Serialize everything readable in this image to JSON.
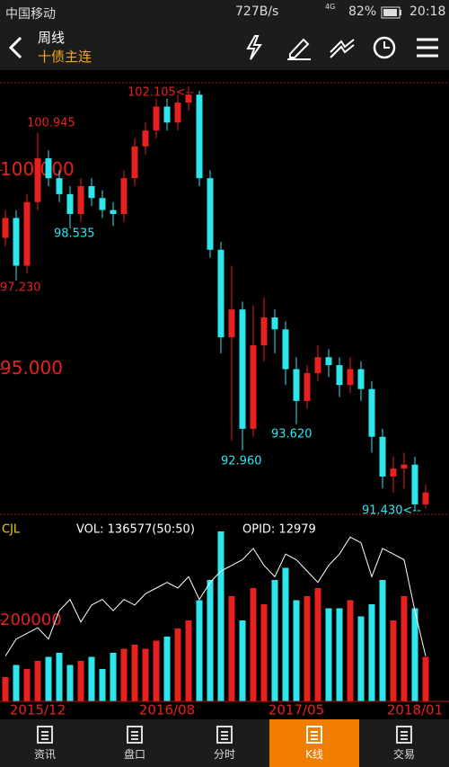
{
  "status_bar": {
    "carrier": "中国移动",
    "speed": "727B/s",
    "network": "4G",
    "battery": "82%",
    "time": "20:18"
  },
  "header": {
    "period": "周线",
    "instrument": "十债主连"
  },
  "tabs": [
    "资讯",
    "盘口",
    "分时",
    "K线",
    "交易"
  ],
  "active_tab": 3,
  "chart_data": [
    {
      "type": "candlestick",
      "open": [
        98.3,
        98.8,
        97.6,
        99.2,
        100.3,
        99.8,
        99.4,
        98.9,
        99.6,
        99.3,
        99.0,
        98.9,
        99.8,
        100.6,
        101.0,
        101.6,
        101.2,
        101.7,
        101.9,
        99.8,
        98.0,
        95.8,
        96.5,
        93.5,
        95.6,
        96.3,
        96.0,
        95.0,
        94.2,
        94.9,
        95.3,
        95.1,
        94.6,
        95.0,
        94.5,
        93.3,
        92.3,
        92.5,
        92.6,
        91.6
      ],
      "high": [
        99.0,
        99.0,
        99.4,
        100.945,
        100.5,
        100.0,
        99.6,
        99.8,
        99.8,
        99.5,
        99.2,
        100.0,
        100.8,
        101.2,
        101.8,
        101.8,
        101.9,
        102.105,
        102.0,
        100.0,
        98.2,
        97.6,
        96.7,
        96.6,
        96.8,
        96.5,
        96.2,
        95.3,
        95.1,
        95.6,
        95.5,
        95.3,
        95.3,
        95.2,
        94.7,
        93.5,
        92.8,
        92.9,
        92.8,
        92.1
      ],
      "low": [
        98.1,
        97.23,
        97.4,
        99.0,
        99.6,
        99.2,
        98.535,
        98.7,
        99.1,
        98.8,
        98.6,
        98.7,
        99.6,
        100.4,
        100.8,
        101.0,
        101.0,
        101.5,
        99.6,
        97.8,
        95.4,
        93.2,
        92.96,
        93.3,
        95.2,
        95.4,
        94.6,
        93.62,
        94.0,
        94.7,
        94.8,
        94.3,
        94.4,
        94.2,
        92.9,
        92.0,
        91.9,
        92.0,
        91.43,
        91.5
      ],
      "close": [
        98.8,
        97.6,
        99.2,
        100.3,
        99.8,
        99.4,
        98.9,
        99.6,
        99.3,
        99.0,
        98.9,
        99.8,
        100.6,
        101.0,
        101.6,
        101.2,
        101.7,
        101.9,
        99.8,
        98.0,
        95.8,
        96.5,
        93.5,
        95.6,
        96.3,
        96.0,
        95.0,
        94.2,
        94.9,
        95.3,
        95.1,
        94.6,
        95.0,
        94.5,
        93.3,
        92.3,
        92.5,
        92.6,
        91.6,
        91.9
      ],
      "up_color": "#e8201e",
      "down_color": "#2ee6ee",
      "ylim": [
        91.35,
        102.2
      ],
      "yticks": [
        {
          "value": 95,
          "label": "95.000"
        },
        {
          "value": 100,
          "label": "100.000"
        }
      ],
      "annotations": [
        "102.105<--",
        "100.945",
        "98.535",
        "97.230",
        "92.960",
        "93.620",
        "91.430<--"
      ]
    },
    {
      "type": "bar",
      "title": "CJL",
      "legend": [
        "VOL: 136577(50:50)",
        "OPID: 12979"
      ],
      "categories": [
        null,
        null,
        null,
        "2015/12",
        null,
        null,
        null,
        null,
        null,
        null,
        null,
        null,
        null,
        null,
        null,
        "2016/08",
        null,
        null,
        null,
        null,
        null,
        null,
        null,
        null,
        null,
        null,
        null,
        "2017/05",
        null,
        null,
        null,
        null,
        null,
        null,
        null,
        null,
        null,
        null,
        "2018/01",
        null
      ],
      "series": [
        {
          "name": "VOL",
          "values": [
            60000,
            90000,
            80000,
            100000,
            110000,
            120000,
            90000,
            100000,
            110000,
            80000,
            120000,
            130000,
            140000,
            130000,
            150000,
            160000,
            180000,
            200000,
            250000,
            300000,
            420000,
            260000,
            200000,
            280000,
            240000,
            300000,
            330000,
            250000,
            260000,
            280000,
            230000,
            230000,
            250000,
            210000,
            240000,
            300000,
            200000,
            260000,
            230000,
            110000
          ]
        },
        {
          "name": "OPID",
          "color": "#ffffff",
          "axis": "y2",
          "values": [
            4000,
            5500,
            6000,
            6500,
            5500,
            8000,
            9000,
            7000,
            8500,
            9000,
            8000,
            9000,
            8500,
            9500,
            10000,
            10500,
            10000,
            11000,
            9000,
            10500,
            11500,
            12000,
            12500,
            13500,
            12000,
            11000,
            13000,
            12500,
            11500,
            10500,
            12000,
            13000,
            14500,
            14000,
            11000,
            13500,
            13000,
            12500,
            8000,
            4000
          ]
        }
      ],
      "ylim": [
        0,
        420000
      ],
      "yticks": [
        200000
      ],
      "y2lim": [
        0,
        15000
      ]
    }
  ]
}
